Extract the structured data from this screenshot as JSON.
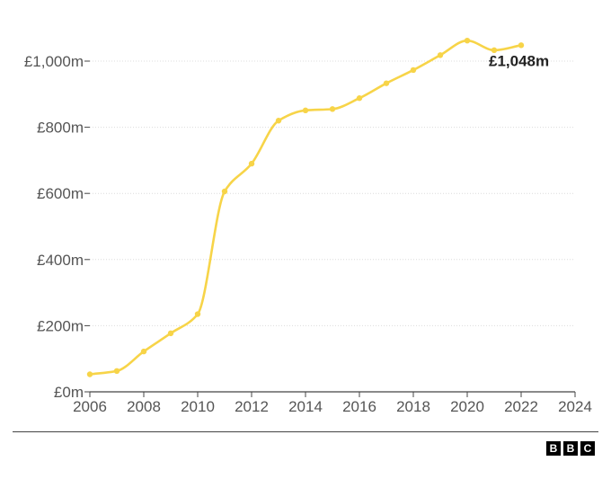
{
  "chart_data": {
    "type": "line",
    "x": [
      2006,
      2007,
      2008,
      2009,
      2010,
      2011,
      2012,
      2013,
      2014,
      2015,
      2016,
      2017,
      2018,
      2019,
      2020,
      2021,
      2022
    ],
    "series": [
      {
        "values": [
          53,
          63,
          122,
          177,
          235,
          606,
          690,
          820,
          851,
          855,
          888,
          933,
          973,
          1018,
          1062,
          1033,
          1048
        ],
        "color": "#f7d448"
      }
    ],
    "xticks": [
      2006,
      2008,
      2010,
      2012,
      2014,
      2016,
      2018,
      2020,
      2022,
      2024
    ],
    "xtick_labels": [
      "2006",
      "2008",
      "2010",
      "2012",
      "2014",
      "2016",
      "2018",
      "2020",
      "2022",
      "2024"
    ],
    "yticks": [
      0,
      200,
      400,
      600,
      800,
      1000
    ],
    "ytick_labels": [
      "£0m",
      "£200m",
      "£400m",
      "£600m",
      "£800m",
      "£1,000m"
    ],
    "xlim": [
      2006,
      2024
    ],
    "ylim": [
      0,
      1000
    ],
    "grid": true,
    "annotations": [
      {
        "x": 2022,
        "y": 1048,
        "text": "£1,048m"
      }
    ]
  },
  "footer": {
    "brand": [
      "B",
      "B",
      "C"
    ]
  }
}
